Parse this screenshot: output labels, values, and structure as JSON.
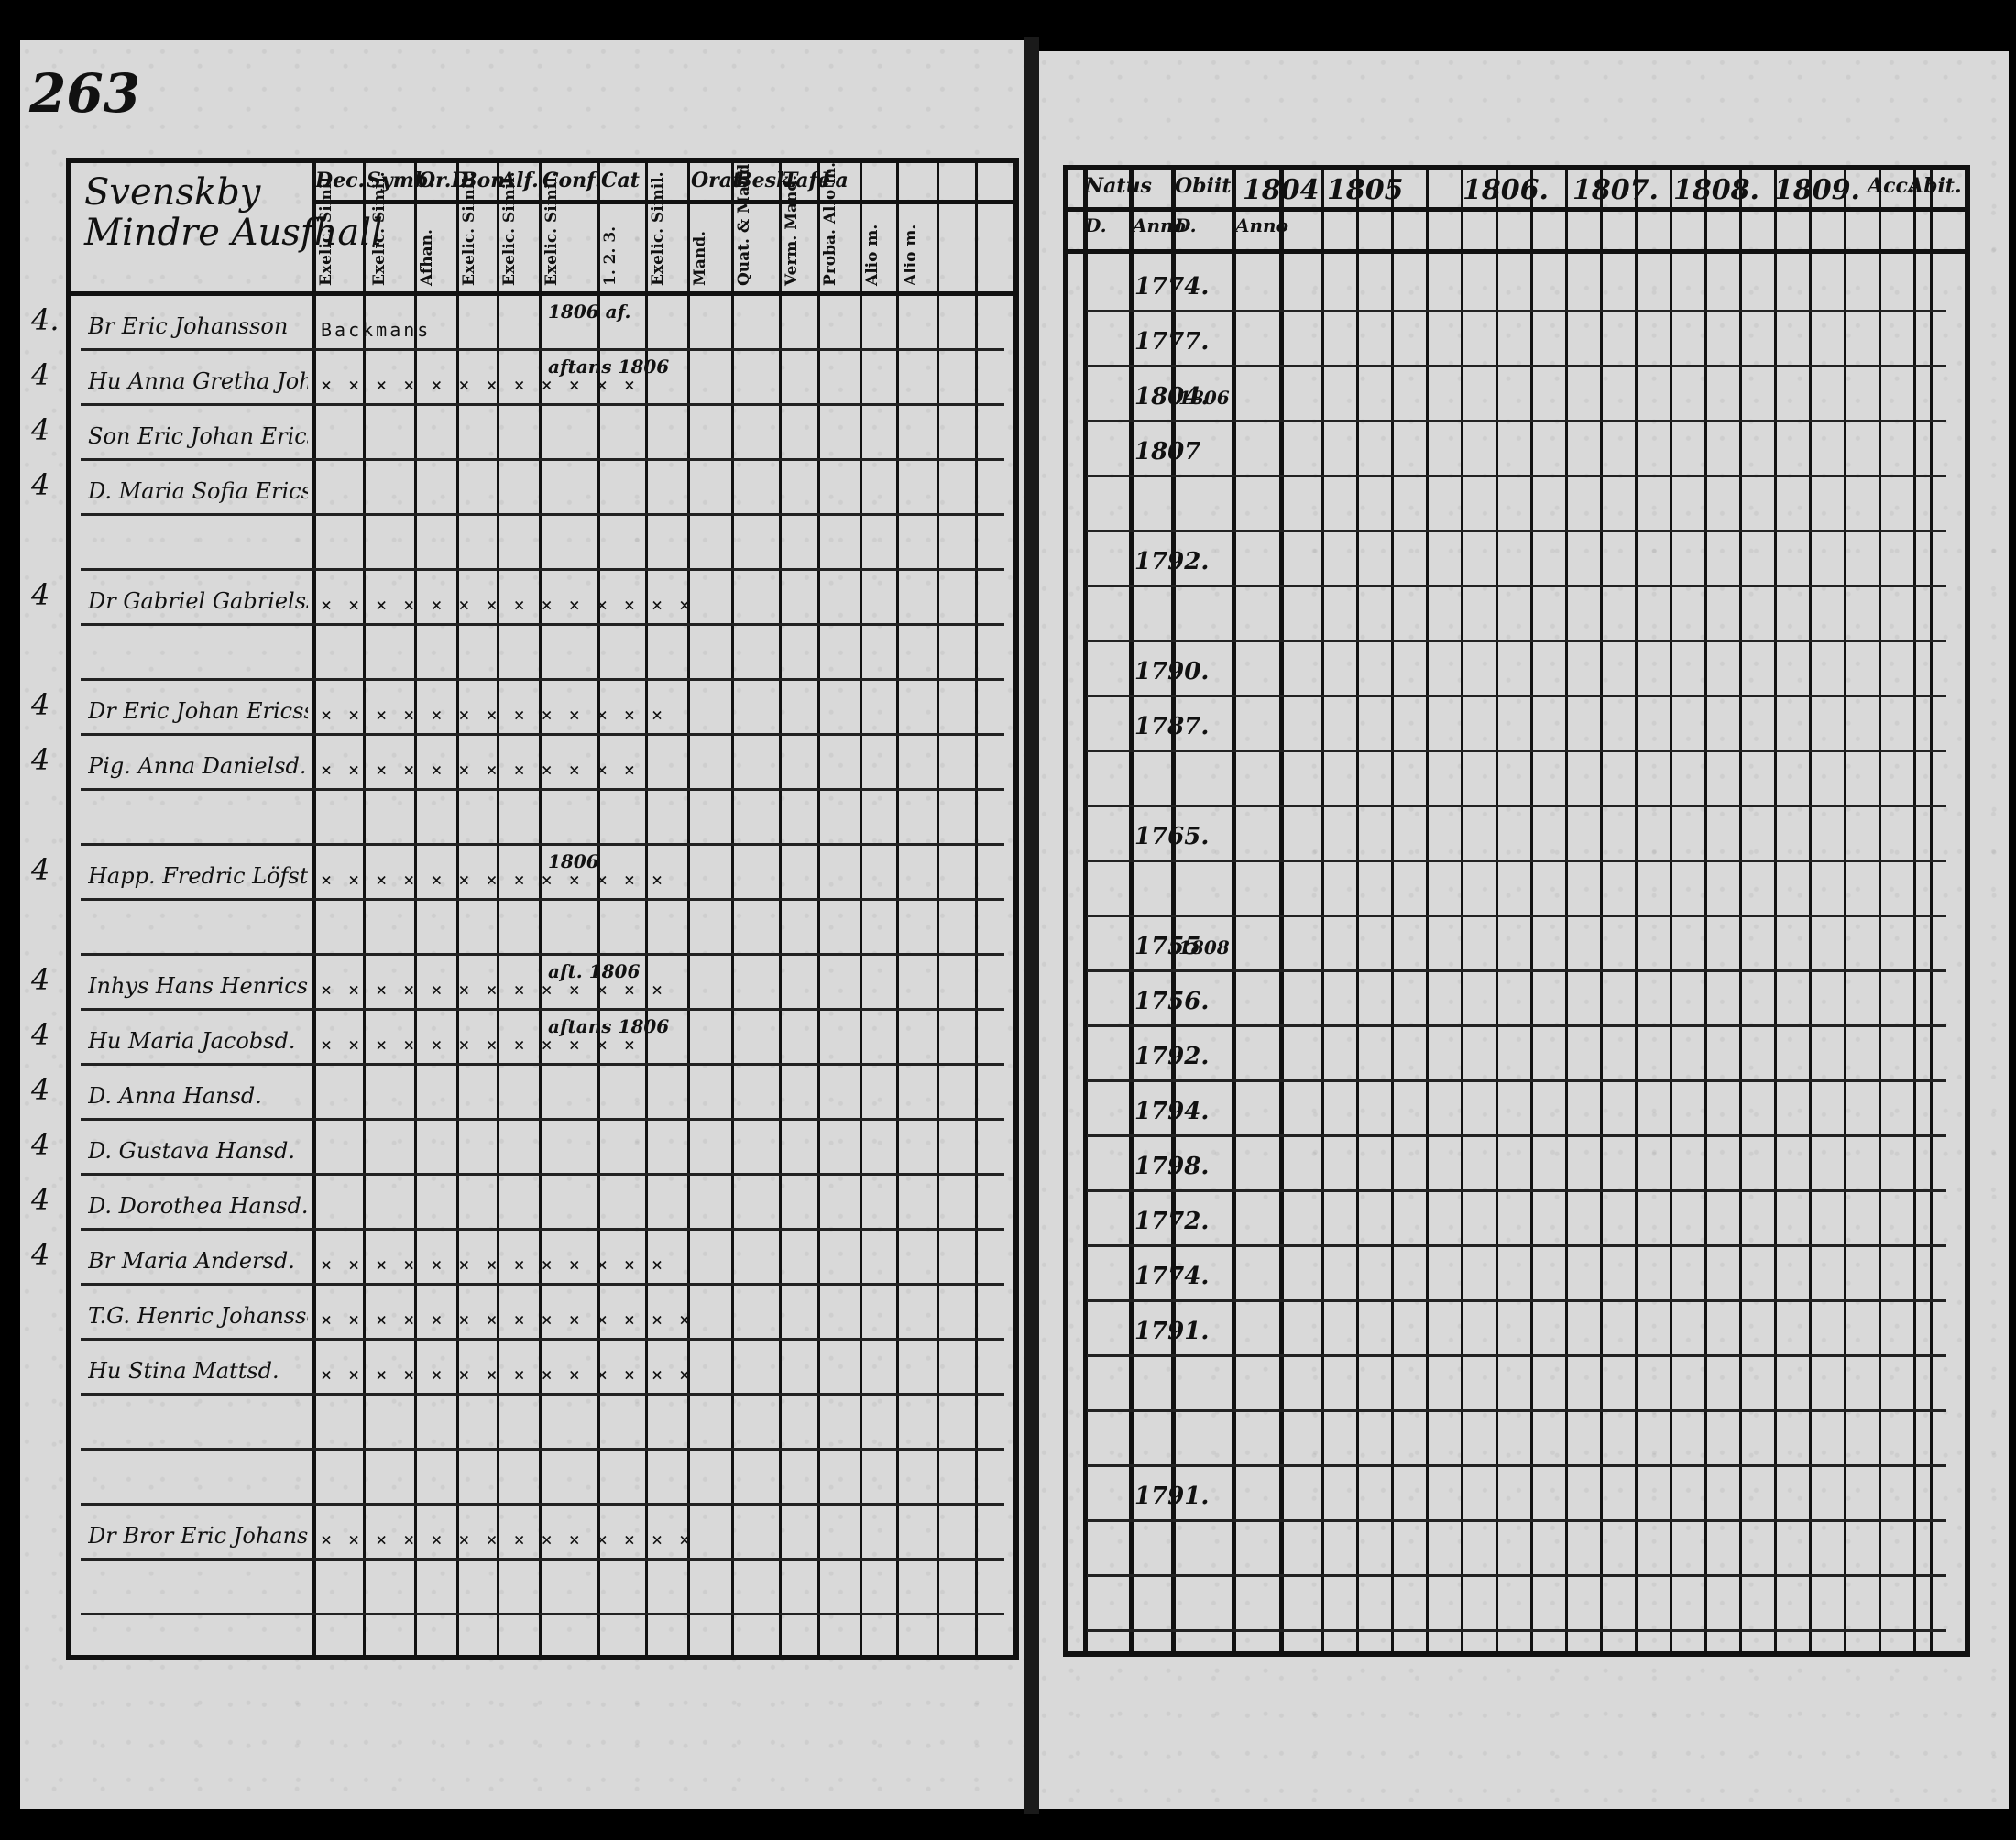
{
  "page_number": "263",
  "title_line1": "Svenskby",
  "title_line2": "Mindre Ausfhall",
  "left_headers": [
    "Dec.",
    "Symb.",
    "Or.D.",
    "Bon",
    "Alf.",
    "Conf.",
    "Cat",
    "",
    "Orat.",
    "Besk.",
    "Tafe",
    "La"
  ],
  "left_subheaders": [
    "Exelic. Simil.",
    "Exelic. Simil.",
    "Afhan.",
    "Exelic. Simil.",
    "Exelic. Simil.",
    "Exelic. Simil.",
    "1. 2. 3.",
    "Exelic. Simil.",
    "Mand.",
    "Quat. & Mand.",
    "Verm. Mand.",
    "Proba. Alio m.",
    "Alio m.",
    "Alio m."
  ],
  "right_headers": [
    "Natus",
    "Obiit",
    "1804",
    "1805",
    "1806.",
    "1807.",
    "1808.",
    "1809.",
    "Acc.",
    "Abit."
  ],
  "right_subheaders": [
    "D.",
    "Anno",
    "D.",
    "Anno"
  ],
  "rows": [
    {
      "mark": "4.",
      "name": "Br Eric Johansson",
      "marks": "Backmans",
      "note": "1806 af.",
      "year": "1774.",
      "right_notes": ""
    },
    {
      "mark": "4",
      "name": "Hu Anna Gretha Johansd.",
      "marks": "× × × × × × × × × × × ×",
      "note": "aftans 1806",
      "year": "1777.",
      "right_notes": ""
    },
    {
      "mark": "4",
      "name": "Son Eric Johan Ericsson",
      "marks": "",
      "note": "",
      "year": "1804.",
      "right_notes": "1806"
    },
    {
      "mark": "4",
      "name": "D. Maria Sofia Ericsd.",
      "marks": "",
      "note": "",
      "year": "1807",
      "right_notes": ""
    },
    {
      "mark": "",
      "name": "",
      "marks": "",
      "note": "",
      "year": "",
      "right_notes": ""
    },
    {
      "mark": "4",
      "name": "Dr Gabriel Gabrielsson",
      "marks": "× × × × × × × × × × × × × ×",
      "note": "",
      "year": "1792.",
      "right_notes": ""
    },
    {
      "mark": "",
      "name": "",
      "marks": "",
      "note": "",
      "year": "",
      "right_notes": ""
    },
    {
      "mark": "4",
      "name": "Dr Eric Johan Ericsson",
      "marks": "× × × × × × × × × × × × ×",
      "note": "",
      "year": "1790.",
      "right_notes": ""
    },
    {
      "mark": "4",
      "name": "Pig. Anna Danielsd.",
      "marks": "× × × × × × × × × × × ×",
      "note": "",
      "year": "1787.",
      "right_notes": ""
    },
    {
      "mark": "",
      "name": "",
      "marks": "",
      "note": "",
      "year": "",
      "right_notes": ""
    },
    {
      "mark": "4",
      "name": "Happ. Fredric Löfstedt",
      "marks": "× × × × × × × × × × × × ×",
      "note": "1806",
      "year": "1765.",
      "right_notes": ""
    },
    {
      "mark": "",
      "name": "",
      "marks": "",
      "note": "",
      "year": "",
      "right_notes": ""
    },
    {
      "mark": "4",
      "name": "Inhys Hans Henricsson",
      "marks": "× × × × × × × × × × × × ×",
      "note": "aft. 1806",
      "year": "1755",
      "right_notes": "1808"
    },
    {
      "mark": "4",
      "name": "Hu Maria Jacobsd.",
      "marks": "× × × × × × × × × × × ×",
      "note": "aftans 1806",
      "year": "1756.",
      "right_notes": ""
    },
    {
      "mark": "4",
      "name": "D. Anna Hansd.",
      "marks": "",
      "note": "",
      "year": "1792.",
      "right_notes": ""
    },
    {
      "mark": "4",
      "name": "D. Gustava Hansd.",
      "marks": "",
      "note": "",
      "year": "1794.",
      "right_notes": ""
    },
    {
      "mark": "4",
      "name": "D. Dorothea Hansd.",
      "marks": "",
      "note": "",
      "year": "1798.",
      "right_notes": ""
    },
    {
      "mark": "4",
      "name": "Br Maria Andersd.",
      "marks": "× × × × × × × × × × × × ×",
      "note": "",
      "year": "1772.",
      "right_notes": ""
    },
    {
      "mark": "",
      "name": "T.G. Henric Johansson",
      "marks": "× × × × × × × × × × × × × ×",
      "note": "",
      "year": "1774.",
      "right_notes": ""
    },
    {
      "mark": "",
      "name": "Hu Stina Mattsd.",
      "marks": "× × × × × × × × × × × × × ×",
      "note": "",
      "year": "1791.",
      "right_notes": ""
    },
    {
      "mark": "",
      "name": "",
      "marks": "",
      "note": "",
      "year": "",
      "right_notes": ""
    },
    {
      "mark": "",
      "name": "",
      "marks": "",
      "note": "",
      "year": "",
      "right_notes": ""
    },
    {
      "mark": "",
      "name": "Dr Bror Eric Johansson",
      "marks": "× × × × × × × × × × × × × ×",
      "note": "",
      "year": "1791.",
      "right_notes": ""
    }
  ]
}
